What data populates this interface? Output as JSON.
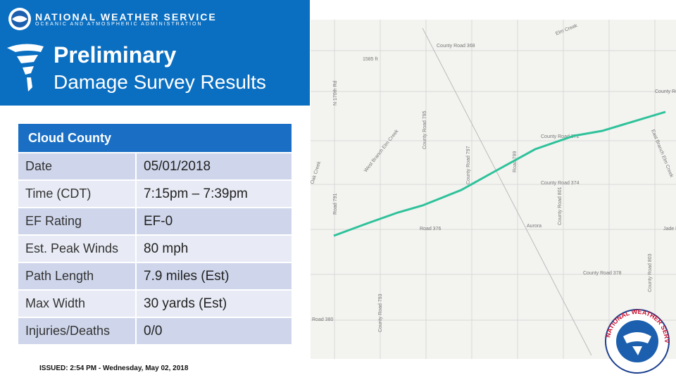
{
  "header": {
    "org": "NATIONAL WEATHER SERVICE",
    "org_sub": "OCEANIC AND ATMOSPHERIC ADMINISTRATION",
    "title": "Preliminary",
    "subtitle": "Damage Survey Results"
  },
  "table": {
    "title": "Cloud County",
    "rows": [
      [
        "Date",
        "05/01/2018"
      ],
      [
        "Time (CDT)",
        "7:15pm – 7:39pm"
      ],
      [
        "EF Rating",
        "EF-0"
      ],
      [
        "Est. Peak Winds",
        "80 mph"
      ],
      [
        "Path Length",
        "7.9 miles (Est)"
      ],
      [
        "Max Width",
        "30 yards (Est)"
      ],
      [
        "Injuries/Deaths",
        "0/0"
      ]
    ]
  },
  "footer": "ISSUED: 2:54 PM - Wednesday, May 02, 2018",
  "map": {
    "labels": [
      "County Road 368",
      "1585 ft",
      "N 170th Rd",
      "Elm Creek",
      "County Road",
      "West Branch Elm Creek",
      "County Road 795",
      "County Road 797",
      "Road 799",
      "County Road 372",
      "County Road 374",
      "County Road 801",
      "Road 376",
      "Aurora",
      "Jade R",
      "Road 791",
      "Oak Creek",
      "County Road 378",
      "County Road 803",
      "County Road 793",
      "Road 380",
      "East Branch Elm Creek"
    ]
  },
  "logo_text": "NATIONAL WEATHER SERVICE"
}
